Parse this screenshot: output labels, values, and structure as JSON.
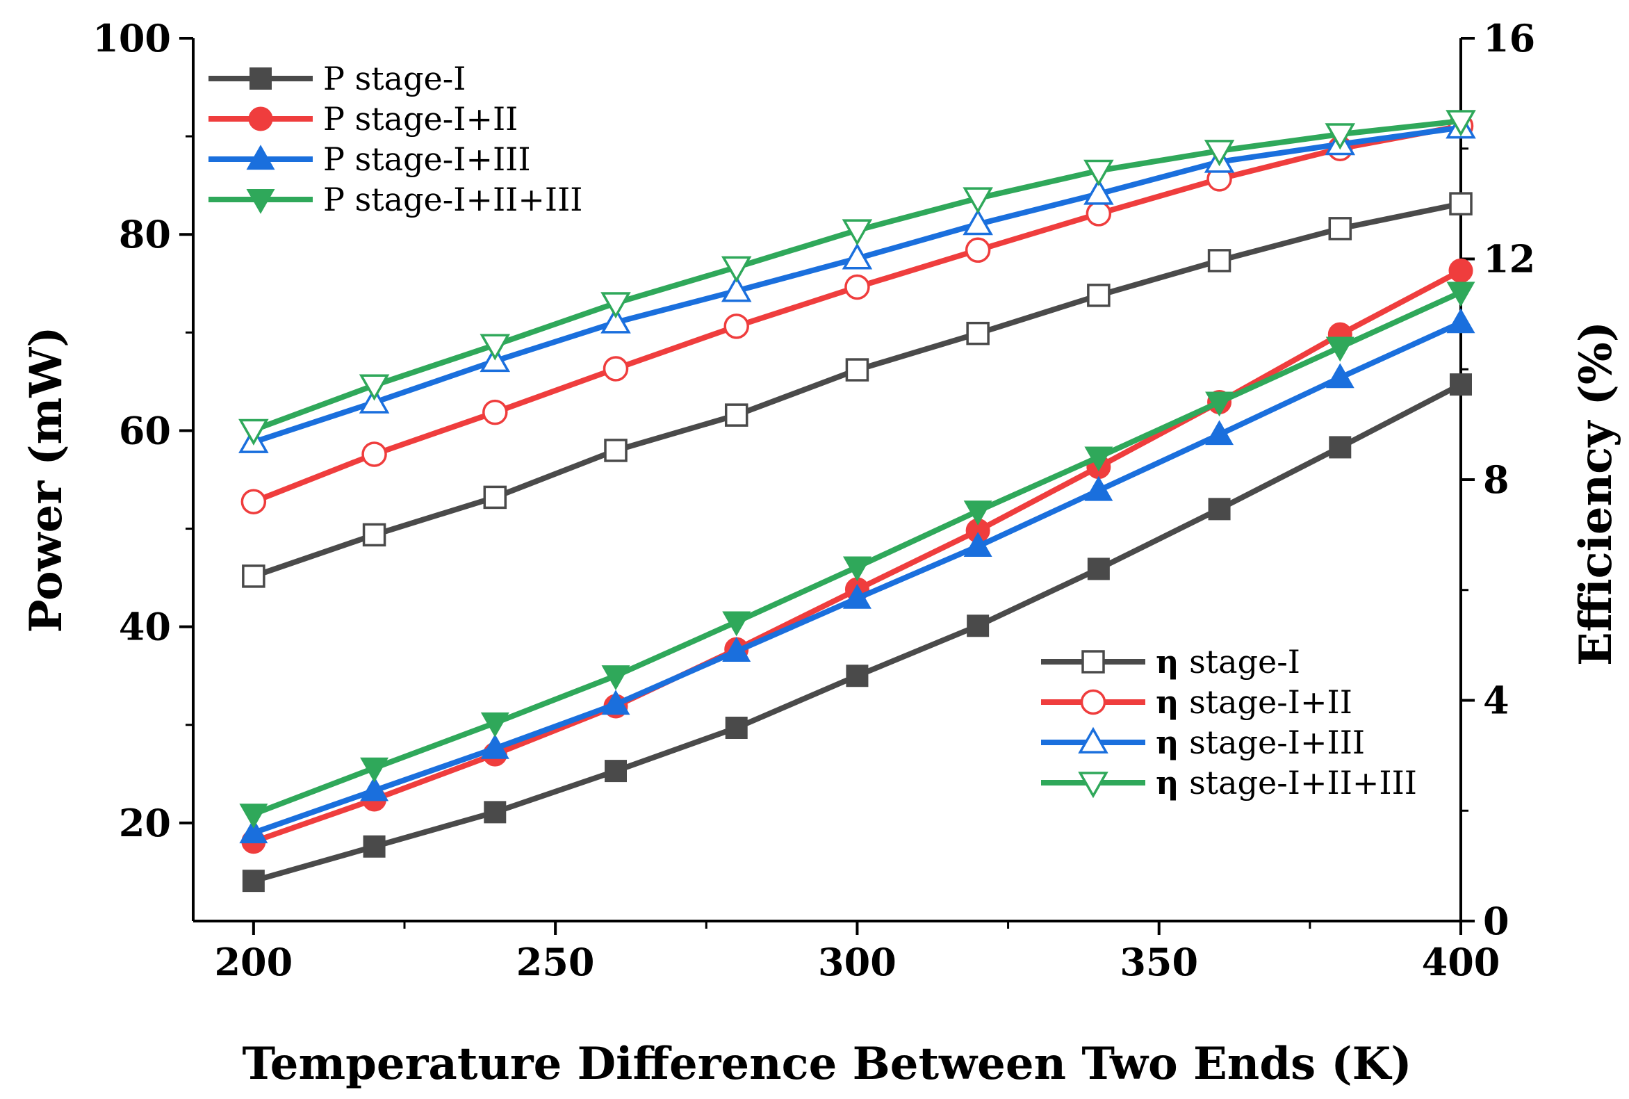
{
  "chart_data": {
    "type": "line",
    "title": "",
    "xlabel": "Temperature Difference Between Two Ends (K)",
    "ylabel": "Power (mW)",
    "y2label": "Efficiency  (%)",
    "xlim": [
      190,
      400
    ],
    "ylim": [
      10,
      100
    ],
    "y2lim": [
      0,
      16
    ],
    "xticks": [
      "200",
      "250",
      "300",
      "350",
      "400"
    ],
    "yticks": [
      "20",
      "40",
      "60",
      "80",
      "100"
    ],
    "y2ticks": [
      "0",
      "4",
      "8",
      "12",
      "16"
    ],
    "grid": false,
    "x": [
      200,
      220,
      240,
      260,
      280,
      300,
      320,
      340,
      360,
      380,
      400
    ],
    "colors": {
      "stage_I": "#4a4a4a",
      "stage_I_II": "#ef3d3d",
      "stage_I_III": "#1a6fdd",
      "stage_I_II_III": "#2fa85a"
    },
    "series": [
      {
        "name": "P stage-I",
        "axis": "left",
        "marker": "square",
        "filled": true,
        "color_key": "stage_I",
        "values": [
          14.1,
          17.6,
          21.1,
          25.3,
          29.7,
          35.0,
          40.1,
          45.9,
          52.0,
          58.3,
          64.7
        ]
      },
      {
        "name": "P stage-I+II",
        "axis": "left",
        "marker": "circle",
        "filled": true,
        "color_key": "stage_I_II",
        "values": [
          18.1,
          22.4,
          27.0,
          31.9,
          37.7,
          43.8,
          49.8,
          56.3,
          62.9,
          69.8,
          76.3
        ]
      },
      {
        "name": "P stage-I+III",
        "axis": "left",
        "marker": "triangle-up",
        "filled": true,
        "color_key": "stage_I_III",
        "values": [
          19.0,
          23.3,
          27.6,
          32.1,
          37.5,
          42.9,
          48.2,
          53.9,
          59.6,
          65.4,
          71.0
        ]
      },
      {
        "name": "P stage-I+II+III",
        "axis": "left",
        "marker": "triangle-down",
        "filled": true,
        "color_key": "stage_I_II_III",
        "values": [
          20.9,
          25.6,
          30.2,
          35.0,
          40.5,
          46.1,
          51.8,
          57.3,
          62.9,
          68.5,
          74.1
        ]
      },
      {
        "name": "η stage-I",
        "axis": "right",
        "marker": "square",
        "filled": false,
        "color_key": "stage_I",
        "values": [
          6.25,
          7.0,
          7.68,
          8.53,
          9.17,
          9.99,
          10.65,
          11.34,
          11.97,
          12.55,
          13.0
        ]
      },
      {
        "name": "η stage-I+II",
        "axis": "right",
        "marker": "circle",
        "filled": false,
        "color_key": "stage_I_II",
        "values": [
          7.6,
          8.46,
          9.22,
          10.01,
          10.78,
          11.49,
          12.16,
          12.82,
          13.45,
          14.0,
          14.41
        ]
      },
      {
        "name": "η stage-I+III",
        "axis": "right",
        "marker": "triangle-up",
        "filled": false,
        "color_key": "stage_I_III",
        "values": [
          8.68,
          9.4,
          10.15,
          10.85,
          11.42,
          12.01,
          12.63,
          13.18,
          13.76,
          14.08,
          14.38
        ]
      },
      {
        "name": "η stage-I+II+III",
        "axis": "right",
        "marker": "triangle-down",
        "filled": false,
        "color_key": "stage_I_II_III",
        "values": [
          8.9,
          9.71,
          10.44,
          11.2,
          11.85,
          12.52,
          13.1,
          13.6,
          13.96,
          14.26,
          14.5
        ]
      }
    ],
    "legends": [
      {
        "placement": "top-left",
        "entries": [
          "P stage-I",
          "P stage-I+II",
          "P stage-I+III",
          "P stage-I+II+III"
        ]
      },
      {
        "placement": "bottom-right",
        "entries": [
          "η stage-I",
          "η stage-I+II",
          "η stage-I+III",
          "η stage-I+II+III"
        ]
      }
    ]
  }
}
